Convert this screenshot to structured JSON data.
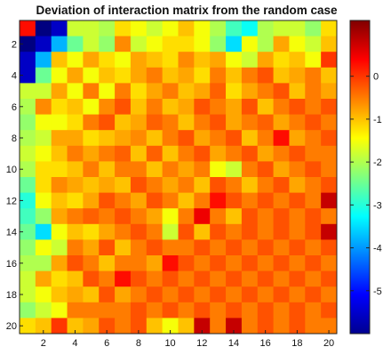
{
  "chart_data": {
    "type": "heatmap",
    "title": "Deviation of interaction matrix from the random case",
    "xlabel": "",
    "ylabel": "",
    "x_ticks": [
      2,
      4,
      6,
      8,
      10,
      12,
      14,
      16,
      18,
      20
    ],
    "y_ticks": [
      2,
      4,
      6,
      8,
      10,
      12,
      14,
      16,
      18,
      20
    ],
    "colorbar_ticks": [
      0,
      -1,
      -2,
      -3,
      -4,
      -5
    ],
    "zlim": [
      -6,
      1.3
    ],
    "colormap": "jet",
    "grid": false,
    "rows": 20,
    "cols": 20,
    "matrix": [
      [
        0.3,
        -6.0,
        -5.5,
        -1.8,
        -1.8,
        -2.0,
        -1.2,
        -1.5,
        -1.8,
        -1.5,
        -1.0,
        -1.5,
        -2.0,
        -2.8,
        -3.2,
        -2.0,
        -1.8,
        -1.8,
        -2.2,
        -1.2
      ],
      [
        -6.0,
        -5.5,
        -3.8,
        -2.5,
        -1.8,
        -2.2,
        -0.6,
        -1.8,
        -1.5,
        -1.2,
        -1.2,
        -1.5,
        -2.2,
        -3.5,
        -1.5,
        -2.0,
        -0.8,
        -1.5,
        -1.8,
        -1.0
      ],
      [
        -5.5,
        -3.8,
        -1.0,
        -1.5,
        -0.8,
        -1.2,
        -1.5,
        -0.8,
        -1.0,
        -1.2,
        -0.6,
        -1.0,
        -0.8,
        -1.5,
        -1.8,
        -0.8,
        -1.2,
        -1.0,
        -1.5,
        0.0
      ],
      [
        -5.5,
        -2.5,
        -1.5,
        -0.8,
        -1.5,
        -1.0,
        -1.2,
        -0.8,
        -0.5,
        -1.0,
        -0.8,
        -1.2,
        -0.5,
        -1.0,
        -0.5,
        -0.2,
        -1.0,
        -0.8,
        -0.5,
        -1.0
      ],
      [
        -1.8,
        -1.8,
        -0.8,
        -1.5,
        -0.5,
        -1.5,
        -0.5,
        -1.2,
        -0.8,
        -0.5,
        -1.0,
        -0.8,
        -0.3,
        -1.2,
        -0.8,
        -0.5,
        -0.2,
        -1.0,
        -0.5,
        -0.8
      ],
      [
        -2.0,
        -0.6,
        -1.2,
        -1.0,
        -1.5,
        -0.6,
        -0.2,
        -1.0,
        -0.5,
        -1.0,
        -0.8,
        -0.2,
        -0.5,
        -0.8,
        -0.2,
        -1.0,
        -0.5,
        -0.2,
        -0.5,
        -0.2
      ],
      [
        -2.2,
        -1.5,
        -1.5,
        -1.2,
        -0.5,
        -0.2,
        -1.0,
        -0.8,
        -0.3,
        -0.5,
        -1.0,
        -0.5,
        -0.2,
        -0.8,
        -0.5,
        -0.3,
        -0.8,
        -0.5,
        -0.2,
        -0.5
      ],
      [
        -2.0,
        -1.8,
        -0.8,
        -0.8,
        -1.2,
        -1.0,
        -0.8,
        -0.6,
        -1.0,
        -0.5,
        -0.2,
        -0.8,
        -0.5,
        -0.2,
        -1.0,
        -0.5,
        0.3,
        -0.8,
        -0.5,
        -0.2
      ],
      [
        -1.8,
        -1.5,
        -1.0,
        -0.5,
        -0.8,
        -0.5,
        -0.3,
        -1.0,
        -0.3,
        -1.0,
        -0.5,
        -0.2,
        -0.8,
        -0.5,
        -0.2,
        -0.8,
        -0.5,
        -0.2,
        -0.5,
        -0.5
      ],
      [
        -2.0,
        -1.2,
        -1.2,
        -1.0,
        -0.5,
        -1.0,
        -0.5,
        -0.5,
        -1.0,
        -0.5,
        -0.8,
        -0.5,
        -1.5,
        -1.8,
        -0.5,
        -0.2,
        -0.8,
        -0.5,
        -0.2,
        -0.5
      ],
      [
        -2.5,
        -1.2,
        -0.6,
        -0.8,
        -1.0,
        -0.8,
        -1.0,
        -0.2,
        -0.5,
        -0.8,
        -0.5,
        -1.0,
        -0.2,
        -0.5,
        -1.0,
        -0.5,
        -0.2,
        -0.8,
        -0.5,
        -0.2
      ],
      [
        -3.0,
        -1.5,
        -1.0,
        -1.2,
        -0.8,
        -0.2,
        -0.5,
        -0.8,
        -0.2,
        -0.5,
        -1.0,
        -0.5,
        0.3,
        -0.2,
        -0.5,
        -0.2,
        -0.5,
        -0.2,
        -0.5,
        0.8
      ],
      [
        -2.8,
        -2.2,
        -0.8,
        -0.5,
        -0.3,
        -0.5,
        -0.2,
        -0.5,
        -0.8,
        -1.5,
        -0.5,
        0.5,
        -0.5,
        -1.0,
        -0.2,
        -0.5,
        -0.2,
        -0.5,
        -0.2,
        -0.5
      ],
      [
        -2.5,
        -3.5,
        -1.5,
        -1.0,
        -1.2,
        -0.8,
        -0.5,
        -0.2,
        -0.5,
        -1.8,
        -0.2,
        -1.0,
        -0.2,
        -0.5,
        -0.2,
        -0.5,
        -0.2,
        -0.5,
        -0.2,
        0.8
      ],
      [
        -2.2,
        -1.5,
        -1.8,
        -0.5,
        -0.8,
        -0.2,
        -1.0,
        -0.5,
        -0.2,
        -0.5,
        -0.5,
        -0.2,
        -0.5,
        -0.2,
        -0.5,
        -0.2,
        -0.5,
        -0.2,
        -0.5,
        -0.2
      ],
      [
        -2.0,
        -2.0,
        -0.8,
        -0.2,
        -0.5,
        -1.0,
        -0.5,
        -0.5,
        -0.8,
        0.3,
        -0.2,
        -0.5,
        -0.2,
        -0.5,
        -0.2,
        -0.5,
        -0.2,
        -0.5,
        -0.2,
        -0.5
      ],
      [
        -1.8,
        -0.8,
        -1.2,
        -1.0,
        -0.2,
        -0.5,
        0.3,
        -0.2,
        -0.5,
        -0.2,
        -0.5,
        -0.2,
        -0.5,
        -0.2,
        -0.5,
        -0.2,
        -0.5,
        -0.2,
        -0.5,
        -0.2
      ],
      [
        -1.8,
        -1.5,
        -1.0,
        -0.8,
        -1.0,
        -0.2,
        -0.8,
        -0.5,
        -0.2,
        -0.5,
        -0.2,
        -0.5,
        -0.2,
        -0.5,
        -0.2,
        -0.5,
        -0.2,
        -0.5,
        -0.2,
        -0.5
      ],
      [
        -2.2,
        -1.8,
        -1.5,
        -0.5,
        -0.5,
        -0.5,
        -0.5,
        -0.2,
        -0.5,
        -0.2,
        -0.5,
        -0.2,
        -0.5,
        -0.2,
        -0.5,
        -0.2,
        -0.5,
        -0.2,
        -0.5,
        -0.2
      ],
      [
        -1.2,
        -1.0,
        0.0,
        -1.0,
        -0.8,
        -0.2,
        -0.5,
        -0.2,
        -1.0,
        -1.5,
        -1.0,
        0.8,
        -0.5,
        0.8,
        -0.5,
        -0.2,
        -0.5,
        -0.2,
        -0.5,
        -0.5
      ]
    ]
  }
}
